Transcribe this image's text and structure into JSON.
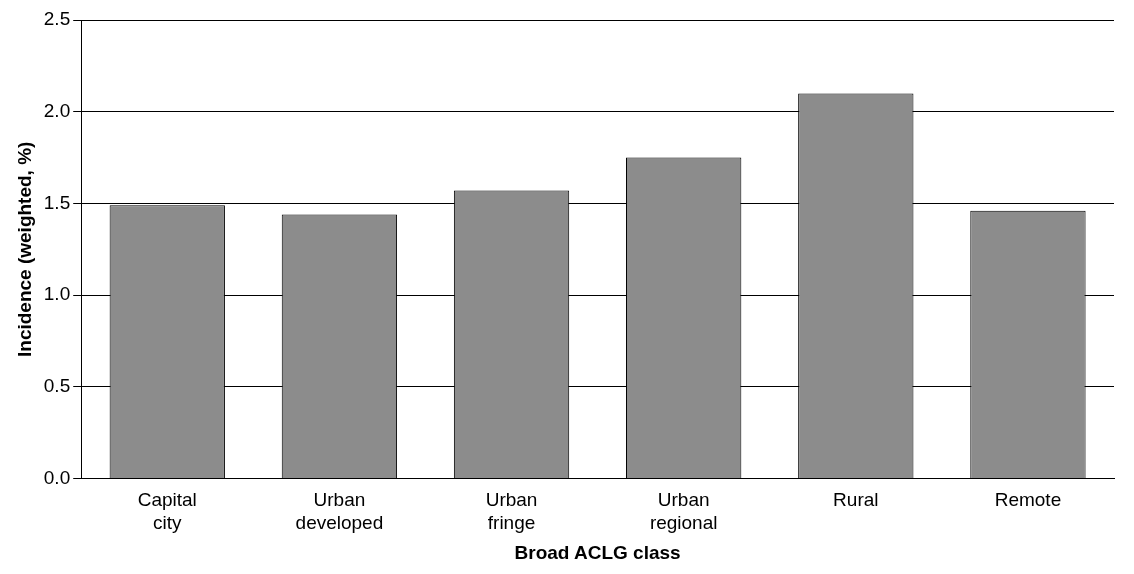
{
  "chart_data": {
    "type": "bar",
    "xlabel": "Broad ACLG class",
    "ylabel": "Incidence (weighted, %)",
    "categories": [
      "Capital city",
      "Urban developed",
      "Urban fringe",
      "Urban regional",
      "Rural",
      "Remote"
    ],
    "values": [
      1.49,
      1.44,
      1.57,
      1.75,
      2.1,
      1.46
    ],
    "color": "#8c8c8c",
    "ylim": [
      0,
      2.5
    ],
    "yticks": [
      {
        "value": 0,
        "label": "0.0"
      },
      {
        "value": 0.5,
        "label": "0.5"
      },
      {
        "value": 1,
        "label": "1.0"
      },
      {
        "value": 1.5,
        "label": "1.5"
      },
      {
        "value": 2,
        "label": "2.0"
      },
      {
        "value": 2.5,
        "label": "2.5"
      }
    ],
    "grid": "y"
  }
}
